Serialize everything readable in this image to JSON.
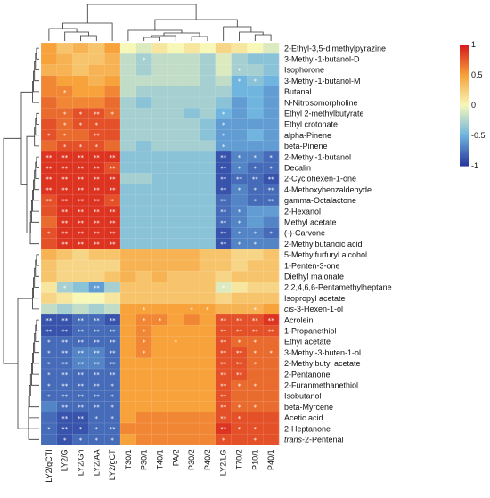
{
  "chart_data": {
    "type": "heatmap",
    "columns": [
      "LY2/gCTI",
      "LY2/G",
      "LY2/Gh",
      "LY2/AA",
      "LY2/gCT",
      "T30/1",
      "P30/1",
      "T40/1",
      "PA/2",
      "P30/2",
      "P40/2",
      "LY2/LG",
      "T70/2",
      "P10/1",
      "P40/1"
    ],
    "rows": [
      "2-Ethyl-3,5-dimethylpyrazine",
      "3-Methyl-1-butanol-D",
      "Isophorone",
      "3-Methyl-1-butanol-M",
      "Butanal",
      "N-Nitrosomorpholine",
      "Ethyl 2-methylbutyrate",
      "Ethyl crotonate",
      "alpha-Pinene",
      "beta-Pinene",
      "2-Methyl-1-butanol",
      "Decalin",
      "2-Cyclohexen-1-one",
      "4-Methoxybenzaldehyde",
      "gamma-Octalactone",
      "2-Hexanol",
      "Methyl acetate",
      "(-)-Carvone",
      "2-Methylbutanoic acid",
      "5-Methylfurfuryl alcohol",
      "1-Penten-3-one",
      "Diethyl malonate",
      "2,2,4,6,6-Pentamethylheptane",
      "Isopropyl acetate",
      "cis-3-Hexen-1-ol",
      "Acrolein",
      "1-Propanethiol",
      "Ethyl acetate",
      "3-Methyl-3-buten-1-ol",
      "2-Methylbutyl acetate",
      "2-Pentanone",
      "2-Furanmethanethiol",
      "Isobutanol",
      "beta-Myrcene",
      "Acetic acid",
      "2-Heptanone",
      "trans-2-Pentenal"
    ],
    "row_prefix_italic": {
      "24": "cis",
      "36": "trans"
    },
    "values": [
      [
        0.5,
        0.3,
        0.4,
        0.3,
        0.5,
        0.0,
        -0.1,
        0.1,
        0.0,
        0.1,
        0.0,
        0.2,
        0.1,
        0.0,
        -0.1
      ],
      [
        0.5,
        0.4,
        0.3,
        0.3,
        0.4,
        -0.2,
        -0.3,
        -0.2,
        -0.2,
        -0.2,
        -0.3,
        -0.1,
        -0.3,
        -0.4,
        -0.4
      ],
      [
        0.4,
        0.4,
        0.3,
        0.4,
        0.4,
        -0.2,
        -0.3,
        -0.2,
        -0.2,
        -0.2,
        -0.3,
        -0.1,
        -0.3,
        -0.3,
        -0.4
      ],
      [
        0.6,
        0.5,
        0.5,
        0.4,
        0.5,
        -0.2,
        -0.2,
        -0.2,
        -0.2,
        -0.2,
        -0.3,
        -0.2,
        -0.5,
        -0.4,
        -0.5
      ],
      [
        0.6,
        0.6,
        0.5,
        0.5,
        0.6,
        -0.2,
        -0.3,
        -0.3,
        -0.3,
        -0.3,
        -0.3,
        -0.3,
        -0.5,
        -0.5,
        -0.6
      ],
      [
        0.7,
        0.6,
        0.6,
        0.6,
        0.7,
        -0.3,
        -0.4,
        -0.3,
        -0.3,
        -0.3,
        -0.3,
        -0.4,
        -0.6,
        -0.5,
        -0.6
      ],
      [
        0.7,
        0.7,
        0.8,
        0.8,
        0.7,
        -0.3,
        -0.3,
        -0.3,
        -0.3,
        -0.4,
        -0.3,
        -0.5,
        -0.6,
        -0.5,
        -0.6
      ],
      [
        0.8,
        0.7,
        0.8,
        0.8,
        0.8,
        -0.3,
        -0.3,
        -0.3,
        -0.3,
        -0.3,
        -0.4,
        -0.6,
        -0.6,
        -0.6,
        -0.6
      ],
      [
        0.8,
        0.7,
        0.7,
        0.8,
        0.8,
        -0.3,
        -0.3,
        -0.3,
        -0.3,
        -0.3,
        -0.4,
        -0.6,
        -0.6,
        -0.5,
        -0.6
      ],
      [
        0.7,
        0.8,
        0.8,
        0.8,
        0.7,
        -0.3,
        -0.4,
        -0.3,
        -0.3,
        -0.3,
        -0.3,
        -0.6,
        -0.6,
        -0.6,
        -0.6
      ],
      [
        0.9,
        0.9,
        0.9,
        0.9,
        0.9,
        -0.4,
        -0.4,
        -0.4,
        -0.4,
        -0.4,
        -0.4,
        -0.9,
        -0.7,
        -0.7,
        -0.8
      ],
      [
        0.9,
        0.9,
        0.9,
        0.9,
        0.8,
        -0.4,
        -0.4,
        -0.4,
        -0.4,
        -0.4,
        -0.4,
        -0.9,
        -0.7,
        -0.8,
        -0.8
      ],
      [
        0.9,
        0.9,
        0.9,
        0.9,
        0.9,
        -0.3,
        -0.3,
        -0.4,
        -0.4,
        -0.4,
        -0.4,
        -0.9,
        -0.8,
        -0.8,
        -0.9
      ],
      [
        0.9,
        0.9,
        0.9,
        0.9,
        0.9,
        -0.4,
        -0.4,
        -0.4,
        -0.4,
        -0.4,
        -0.4,
        -0.9,
        -0.7,
        -0.8,
        -0.8
      ],
      [
        0.8,
        0.9,
        0.9,
        0.9,
        0.8,
        -0.4,
        -0.4,
        -0.4,
        -0.4,
        -0.4,
        -0.4,
        -0.8,
        -0.7,
        -0.8,
        -0.8
      ],
      [
        0.8,
        0.9,
        0.9,
        0.9,
        0.9,
        -0.4,
        -0.4,
        -0.4,
        -0.4,
        -0.4,
        -0.4,
        -0.8,
        -0.7,
        -0.6,
        -0.6
      ],
      [
        0.7,
        0.9,
        0.9,
        0.9,
        0.9,
        -0.4,
        -0.4,
        -0.4,
        -0.4,
        -0.4,
        -0.4,
        -0.8,
        -0.7,
        -0.6,
        -0.7
      ],
      [
        0.8,
        0.9,
        0.9,
        0.9,
        0.9,
        -0.4,
        -0.4,
        -0.4,
        -0.4,
        -0.4,
        -0.4,
        -0.9,
        -0.7,
        -0.7,
        -0.8
      ],
      [
        0.8,
        0.9,
        0.9,
        0.9,
        0.9,
        -0.4,
        -0.4,
        -0.4,
        -0.4,
        -0.4,
        -0.4,
        -0.9,
        -0.7,
        -0.7,
        -0.7
      ],
      [
        0.4,
        0.3,
        0.2,
        0.3,
        0.3,
        0.4,
        0.4,
        0.4,
        0.4,
        0.4,
        0.3,
        0.3,
        0.2,
        0.2,
        0.3
      ],
      [
        0.3,
        0.2,
        0.2,
        0.2,
        0.2,
        0.4,
        0.4,
        0.4,
        0.4,
        0.4,
        0.3,
        0.3,
        0.2,
        0.3,
        0.3
      ],
      [
        0.3,
        0.2,
        0.2,
        0.2,
        0.3,
        0.4,
        0.3,
        0.4,
        0.3,
        0.3,
        0.3,
        0.2,
        0.3,
        0.3,
        0.3
      ],
      [
        0.1,
        -0.3,
        -0.4,
        -0.6,
        -0.3,
        0.3,
        0.3,
        0.3,
        0.3,
        0.3,
        0.3,
        -0.1,
        0.1,
        0.2,
        0.2
      ],
      [
        0.2,
        0.1,
        0.0,
        0.0,
        0.1,
        0.3,
        0.3,
        0.3,
        0.3,
        0.3,
        0.3,
        0.2,
        0.3,
        0.3,
        0.3
      ],
      [
        -0.2,
        -0.3,
        -0.2,
        -0.3,
        -0.2,
        0.5,
        0.5,
        0.5,
        0.5,
        0.5,
        0.5,
        0.4,
        0.4,
        0.4,
        0.5
      ],
      [
        -0.9,
        -0.9,
        -0.8,
        -0.8,
        -0.9,
        0.5,
        0.6,
        0.6,
        0.5,
        0.6,
        0.5,
        0.8,
        0.8,
        0.8,
        0.9
      ],
      [
        -0.9,
        -0.9,
        -0.8,
        -0.8,
        -0.8,
        0.5,
        0.6,
        0.5,
        0.5,
        0.5,
        0.5,
        0.8,
        0.8,
        0.8,
        0.8
      ],
      [
        -0.8,
        -0.8,
        -0.8,
        -0.8,
        -0.8,
        0.5,
        0.6,
        0.5,
        0.5,
        0.5,
        0.5,
        0.8,
        0.7,
        0.7,
        0.7
      ],
      [
        -0.8,
        -0.8,
        -0.7,
        -0.7,
        -0.8,
        0.5,
        0.6,
        0.5,
        0.5,
        0.5,
        0.5,
        0.8,
        0.8,
        0.7,
        0.7
      ],
      [
        -0.8,
        -0.8,
        -0.7,
        -0.7,
        -0.8,
        0.5,
        0.5,
        0.5,
        0.5,
        0.5,
        0.5,
        0.8,
        0.8,
        0.7,
        0.7
      ],
      [
        -0.8,
        -0.8,
        -0.8,
        -0.8,
        -0.8,
        0.5,
        0.5,
        0.5,
        0.5,
        0.5,
        0.5,
        0.8,
        0.8,
        0.7,
        0.7
      ],
      [
        -0.8,
        -0.8,
        -0.8,
        -0.8,
        -0.8,
        0.5,
        0.5,
        0.5,
        0.5,
        0.5,
        0.5,
        0.8,
        0.7,
        0.7,
        0.7
      ],
      [
        -0.8,
        -0.8,
        -0.8,
        -0.8,
        -0.8,
        0.5,
        0.5,
        0.5,
        0.5,
        0.5,
        0.5,
        0.8,
        0.7,
        0.7,
        0.7
      ],
      [
        -0.7,
        -0.8,
        -0.8,
        -0.8,
        -0.8,
        0.5,
        0.5,
        0.5,
        0.5,
        0.5,
        0.5,
        0.8,
        0.7,
        0.7,
        0.7
      ],
      [
        -0.8,
        -0.9,
        -0.9,
        -0.8,
        -0.8,
        0.5,
        0.6,
        0.6,
        0.6,
        0.6,
        0.6,
        0.8,
        0.8,
        0.8,
        0.8
      ],
      [
        -0.8,
        -0.9,
        -0.9,
        -0.8,
        -0.8,
        0.6,
        0.6,
        0.6,
        0.6,
        0.6,
        0.6,
        0.9,
        0.8,
        0.8,
        0.8
      ],
      [
        -0.8,
        -0.9,
        -0.8,
        -0.8,
        -0.8,
        0.5,
        0.6,
        0.6,
        0.6,
        0.6,
        0.6,
        0.8,
        0.8,
        0.8,
        0.8
      ]
    ],
    "stars": [
      [
        "",
        "",
        "",
        "",
        "",
        "",
        "",
        "",
        "",
        "",
        "",
        "",
        "",
        "",
        ""
      ],
      [
        "",
        "",
        "",
        "",
        "",
        "",
        "*",
        "",
        "",
        "",
        "",
        "",
        "",
        "",
        ""
      ],
      [
        "",
        "",
        "",
        "",
        "",
        "",
        "",
        "",
        "",
        "",
        "",
        "",
        "*",
        "",
        ""
      ],
      [
        "",
        "",
        "",
        "",
        "",
        "",
        "",
        "",
        "",
        "",
        "",
        "",
        "*",
        "*",
        ""
      ],
      [
        "",
        "*",
        "",
        "",
        "",
        "",
        "",
        "",
        "",
        "",
        "",
        "",
        "",
        "",
        ""
      ],
      [
        "",
        "",
        "",
        "",
        "",
        "",
        "",
        "",
        "",
        "",
        "",
        "",
        "",
        "",
        ""
      ],
      [
        "",
        "*",
        "*",
        "**",
        "*",
        "",
        "",
        "",
        "",
        "",
        "",
        "*",
        "",
        "",
        ""
      ],
      [
        "",
        "*",
        "*",
        "*",
        "",
        "",
        "",
        "",
        "",
        "",
        "",
        "*",
        "",
        "",
        ""
      ],
      [
        "*",
        "*",
        "",
        "**",
        "",
        "",
        "",
        "",
        "",
        "",
        "",
        "*",
        "",
        "",
        ""
      ],
      [
        "",
        "*",
        "*",
        "*",
        "",
        "",
        "",
        "",
        "",
        "",
        "",
        "*",
        "",
        "",
        ""
      ],
      [
        "**",
        "**",
        "**",
        "**",
        "**",
        "",
        "",
        "",
        "",
        "",
        "",
        "**",
        "*",
        "*",
        "*"
      ],
      [
        "**",
        "**",
        "**",
        "**",
        "**",
        "",
        "",
        "",
        "",
        "",
        "",
        "**",
        "*",
        "*",
        "*"
      ],
      [
        "**",
        "**",
        "**",
        "**",
        "**",
        "",
        "",
        "",
        "",
        "",
        "",
        "**",
        "**",
        "**",
        "**"
      ],
      [
        "**",
        "**",
        "**",
        "**",
        "**",
        "",
        "",
        "",
        "",
        "",
        "",
        "**",
        "*",
        "*",
        "**"
      ],
      [
        "**",
        "**",
        "**",
        "**",
        "*",
        "",
        "",
        "",
        "",
        "",
        "",
        "**",
        "",
        "*",
        "**"
      ],
      [
        "",
        "**",
        "**",
        "**",
        "**",
        "",
        "",
        "",
        "",
        "",
        "",
        "**",
        "*",
        "",
        ""
      ],
      [
        "",
        "**",
        "**",
        "**",
        "**",
        "",
        "",
        "",
        "",
        "",
        "",
        "**",
        "*",
        "",
        ""
      ],
      [
        "*",
        "**",
        "**",
        "**",
        "**",
        "",
        "",
        "",
        "",
        "",
        "",
        "**",
        "*",
        "*",
        "*"
      ],
      [
        "",
        "**",
        "**",
        "**",
        "**",
        "",
        "",
        "",
        "",
        "",
        "",
        "**",
        "*",
        "*",
        ""
      ],
      [
        "",
        "",
        "",
        "",
        "",
        "",
        "",
        "",
        "",
        "",
        "",
        "",
        "",
        "",
        ""
      ],
      [
        "",
        "",
        "",
        "",
        "",
        "",
        "",
        "",
        "",
        "",
        "",
        "",
        "",
        "",
        ""
      ],
      [
        "",
        "",
        "",
        "",
        "",
        "",
        "",
        "",
        "",
        "",
        "",
        "",
        "",
        "",
        ""
      ],
      [
        "",
        "*",
        "",
        "**",
        "",
        "",
        "",
        "",
        "",
        "",
        "",
        "*",
        "",
        "",
        ""
      ],
      [
        "",
        "",
        "",
        "",
        "",
        "",
        "",
        "",
        "",
        "",
        "",
        "",
        "",
        "",
        ""
      ],
      [
        "",
        "",
        "",
        "",
        "",
        "",
        "*",
        "",
        "",
        "*",
        "*",
        "",
        "",
        "*",
        ""
      ],
      [
        "**",
        "**",
        "**",
        "**",
        "**",
        "",
        "*",
        "*",
        "",
        "",
        "",
        "**",
        "**",
        "**",
        "**"
      ],
      [
        "**",
        "**",
        "**",
        "**",
        "**",
        "",
        "*",
        "",
        "",
        "",
        "",
        "**",
        "**",
        "**",
        "**"
      ],
      [
        "*",
        "**",
        "**",
        "**",
        "**",
        "",
        "*",
        "",
        "*",
        "",
        "",
        "**",
        "*",
        "*",
        ""
      ],
      [
        "*",
        "**",
        "**",
        "**",
        "**",
        "",
        "*",
        "",
        "",
        "",
        "",
        "**",
        "**",
        "*",
        "*"
      ],
      [
        "*",
        "**",
        "**",
        "**",
        "**",
        "",
        "",
        "",
        "",
        "",
        "",
        "**",
        "**",
        "*",
        ""
      ],
      [
        "*",
        "**",
        "**",
        "**",
        "**",
        "",
        "",
        "",
        "",
        "",
        "",
        "**",
        "**",
        "",
        ""
      ],
      [
        "*",
        "**",
        "**",
        "**",
        "*",
        "",
        "",
        "",
        "",
        "",
        "",
        "**",
        "*",
        "*",
        ""
      ],
      [
        "*",
        "**",
        "**",
        "**",
        "*",
        "",
        "",
        "",
        "",
        "",
        "",
        "**",
        "",
        "",
        ""
      ],
      [
        "",
        "**",
        "**",
        "**",
        "*",
        "",
        "",
        "",
        "",
        "",
        "",
        "**",
        "*",
        "*",
        ""
      ],
      [
        "",
        "**",
        "**",
        "*",
        "*",
        "",
        "",
        "",
        "",
        "",
        "",
        "**",
        "*",
        "",
        ""
      ],
      [
        "*",
        "**",
        "*",
        "*",
        "**",
        "",
        "",
        "",
        "",
        "",
        "",
        "**",
        "*",
        "*",
        ""
      ],
      [
        "",
        "*",
        "*",
        "*",
        "*",
        "",
        "",
        "",
        "",
        "",
        "",
        "*",
        "",
        "*",
        ""
      ]
    ],
    "colorbar": {
      "ticks": [
        1,
        0.5,
        0,
        -0.5,
        -1
      ],
      "tick_labels": [
        "1",
        "0.5",
        "0",
        "-0.5",
        "-1"
      ],
      "range": [
        -1,
        1
      ]
    },
    "colors": {
      "low": "#2a3a9e",
      "mid_low": "#6fb5e0",
      "mid": "#f7f7b8",
      "mid_high": "#f7a23a",
      "high": "#d7191c"
    }
  }
}
